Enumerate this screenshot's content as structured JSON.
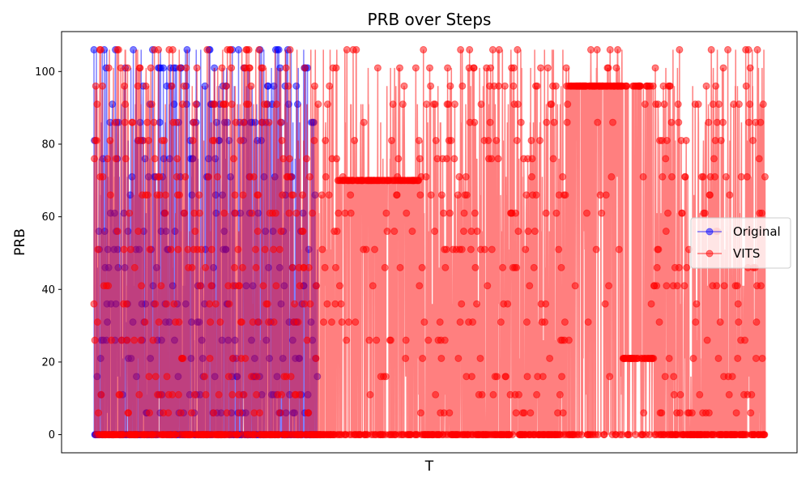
{
  "chart_data": {
    "type": "line",
    "title": "PRB over Steps",
    "xlabel": "T",
    "ylabel": "PRB",
    "ylim": [
      -5,
      111
    ],
    "yticks": [
      0,
      20,
      40,
      60,
      80,
      100
    ],
    "xticks_visible": false,
    "grid": false,
    "legend_position": "center-right",
    "x_range": [
      0,
      3000
    ],
    "original_end_x": 1000,
    "markers": true,
    "marker_alpha": 0.5,
    "prb_levels": [
      0,
      6,
      11,
      16,
      21,
      26,
      31,
      36,
      41,
      46,
      51,
      56,
      61,
      66,
      71,
      76,
      81,
      86,
      91,
      96,
      101,
      106
    ],
    "series": [
      {
        "name": "Original",
        "color": "#0000ff",
        "line_alpha": 0.5
      },
      {
        "name": "VITS",
        "color": "#ff0000",
        "line_alpha": 0.5
      }
    ],
    "visible_bands": [
      {
        "series": "VITS",
        "x": [
          2365,
          2500
        ],
        "y": 21
      },
      {
        "series": "VITS",
        "x": [
          0,
          3000
        ],
        "y": 0
      },
      {
        "series": "VITS",
        "x": [
          1090,
          1450
        ],
        "y": 70
      },
      {
        "series": "VITS",
        "x": [
          2110,
          2500
        ],
        "y": 96
      }
    ]
  }
}
